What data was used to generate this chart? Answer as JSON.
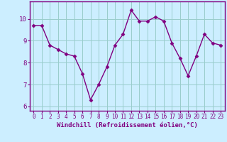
{
  "x": [
    0,
    1,
    2,
    3,
    4,
    5,
    6,
    7,
    8,
    9,
    10,
    11,
    12,
    13,
    14,
    15,
    16,
    17,
    18,
    19,
    20,
    21,
    22,
    23
  ],
  "y": [
    9.7,
    9.7,
    8.8,
    8.6,
    8.4,
    8.3,
    7.5,
    6.3,
    7.0,
    7.8,
    8.8,
    9.3,
    10.4,
    9.9,
    9.9,
    10.1,
    9.9,
    8.9,
    8.2,
    7.4,
    8.3,
    9.3,
    8.9,
    8.8
  ],
  "line_color": "#800080",
  "marker": "D",
  "marker_size": 2.5,
  "background_color": "#cceeff",
  "grid_color": "#99cccc",
  "xlabel": "Windchill (Refroidissement éolien,°C)",
  "xlabel_color": "#800080",
  "tick_color": "#800080",
  "ylim": [
    5.8,
    10.8
  ],
  "xlim": [
    -0.5,
    23.5
  ],
  "yticks": [
    6,
    7,
    8,
    9,
    10
  ],
  "xticks": [
    0,
    1,
    2,
    3,
    4,
    5,
    6,
    7,
    8,
    9,
    10,
    11,
    12,
    13,
    14,
    15,
    16,
    17,
    18,
    19,
    20,
    21,
    22,
    23
  ],
  "spine_color": "#800080",
  "fig_bg": "#cceeff",
  "tick_fontsize": 5.5,
  "xlabel_fontsize": 6.5,
  "ytick_fontsize": 6.5
}
